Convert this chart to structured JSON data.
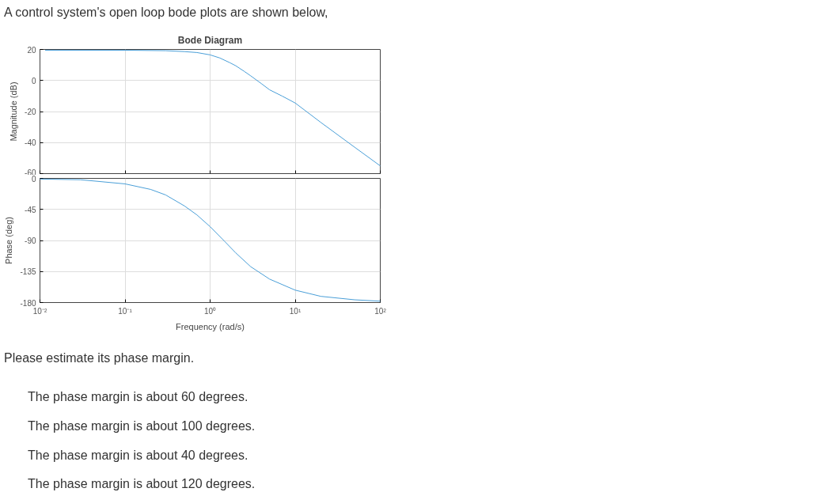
{
  "chart_data": [
    {
      "type": "line",
      "title": "Bode Diagram",
      "ylabel": "Magnitude (dB)",
      "annotations": [
        "A control system's open loop bode plots are shown below,"
      ],
      "x": [
        0.0115,
        0.1,
        0.3,
        0.5,
        0.7,
        1,
        1.3,
        1.7,
        2,
        2.5,
        3,
        4,
        5,
        7,
        10,
        20,
        50,
        100
      ],
      "series": [
        {
          "color": "#4a9fd8",
          "values": [
            19.5,
            19.5,
            19.2,
            18.6,
            18,
            16.5,
            14.5,
            11.5,
            9.5,
            6,
            3,
            -2,
            -6,
            -10,
            -14.5,
            -27,
            -43,
            -55
          ]
        }
      ],
      "xlim": [
        0.01,
        100
      ],
      "xticks": [
        {
          "value": 0.01,
          "label": null
        },
        {
          "value": 0.1,
          "label": null
        },
        {
          "value": 1,
          "label": null
        },
        {
          "value": 10,
          "label": null
        },
        {
          "value": 100,
          "label": null
        }
      ],
      "ylim": [
        -60,
        20
      ],
      "yticks": [
        -60,
        -40,
        -20,
        0,
        20
      ],
      "log": "x",
      "grid": true,
      "tick_labels": "y"
    },
    {
      "type": "line",
      "xlabel": "Frequency (rad/s)",
      "ylabel": "Phase (deg)",
      "annotations": [
        "Please estimate its phase margin.",
        "The phase margin is about 60 degrees.",
        "The phase margin is about 100 degrees.",
        "The phase margin is about 40 degrees.",
        "The phase margin is about 120 degrees."
      ],
      "x": [
        0.01,
        0.03,
        0.1,
        0.2,
        0.3,
        0.5,
        0.7,
        1,
        1.5,
        2,
        3,
        5,
        10,
        20,
        50,
        100
      ],
      "series": [
        {
          "color": "#4a9fd8",
          "values": [
            -1,
            -2,
            -8,
            -16,
            -24,
            -40,
            -53,
            -70,
            -92,
            -108,
            -128,
            -146,
            -162,
            -171,
            -176,
            -178
          ]
        }
      ],
      "xlim": [
        0.01,
        100
      ],
      "xticks": [
        {
          "value": 0.01,
          "label": "10⁻²"
        },
        {
          "value": 0.1,
          "label": "10⁻¹"
        },
        {
          "value": 1,
          "label": "10⁰"
        },
        {
          "value": 10,
          "label": "10¹"
        },
        {
          "value": 100,
          "label": "10²"
        }
      ],
      "ylim": [
        -180,
        0
      ],
      "yticks": [
        -180,
        -135,
        -90,
        -45,
        0
      ],
      "log": "x",
      "grid": true
    }
  ]
}
